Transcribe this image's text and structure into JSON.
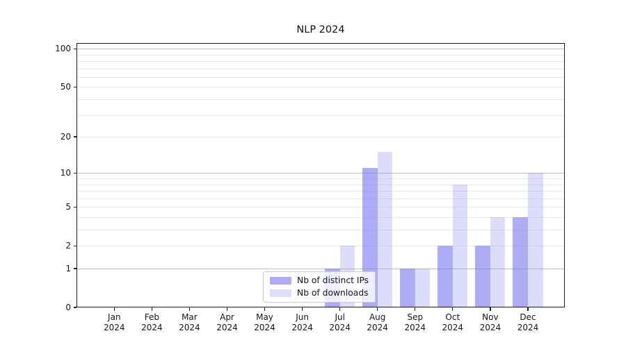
{
  "title": "NLP 2024",
  "chart_data": {
    "type": "bar",
    "title": "NLP 2024",
    "categories": [
      "Jan",
      "Feb",
      "Mar",
      "Apr",
      "May",
      "Jun",
      "Jul",
      "Aug",
      "Sep",
      "Oct",
      "Nov",
      "Dec"
    ],
    "category_year": "2024",
    "series": [
      {
        "name": "Nb of distinct IPs",
        "key": "distinct-ips",
        "color": "rgba(124,124,242,0.63)",
        "values": [
          0,
          0,
          0,
          0,
          0,
          0,
          1,
          11,
          1,
          2,
          2,
          4
        ]
      },
      {
        "name": "Nb of downloads",
        "key": "downloads",
        "color": "rgba(124,124,242,0.27)",
        "values": [
          0,
          0,
          0,
          0,
          0,
          0,
          2,
          15,
          1,
          8,
          4,
          10
        ]
      }
    ],
    "xlabel": "",
    "ylabel": "",
    "y_scale": "log1p",
    "ylim": [
      0,
      111
    ],
    "y_ticks": [
      0,
      1,
      2,
      5,
      10,
      20,
      50,
      100
    ],
    "y_major_gridlines": [
      1,
      10,
      100
    ],
    "y_minor_gridlines": [
      2,
      3,
      4,
      5,
      6,
      7,
      8,
      9,
      20,
      30,
      40,
      50,
      60,
      70,
      80,
      90
    ],
    "grid": "horizontal",
    "legend_position": "lower-center"
  },
  "colors": {
    "bar_distinct_ips": "rgba(124,124,242,0.63)",
    "bar_downloads": "rgba(124,124,242,0.27)",
    "major_grid": "#bdbdbd",
    "minor_grid": "#e9e9e9",
    "spine": "#1c1c1c",
    "background": "#ffffff",
    "text": "#151515"
  }
}
